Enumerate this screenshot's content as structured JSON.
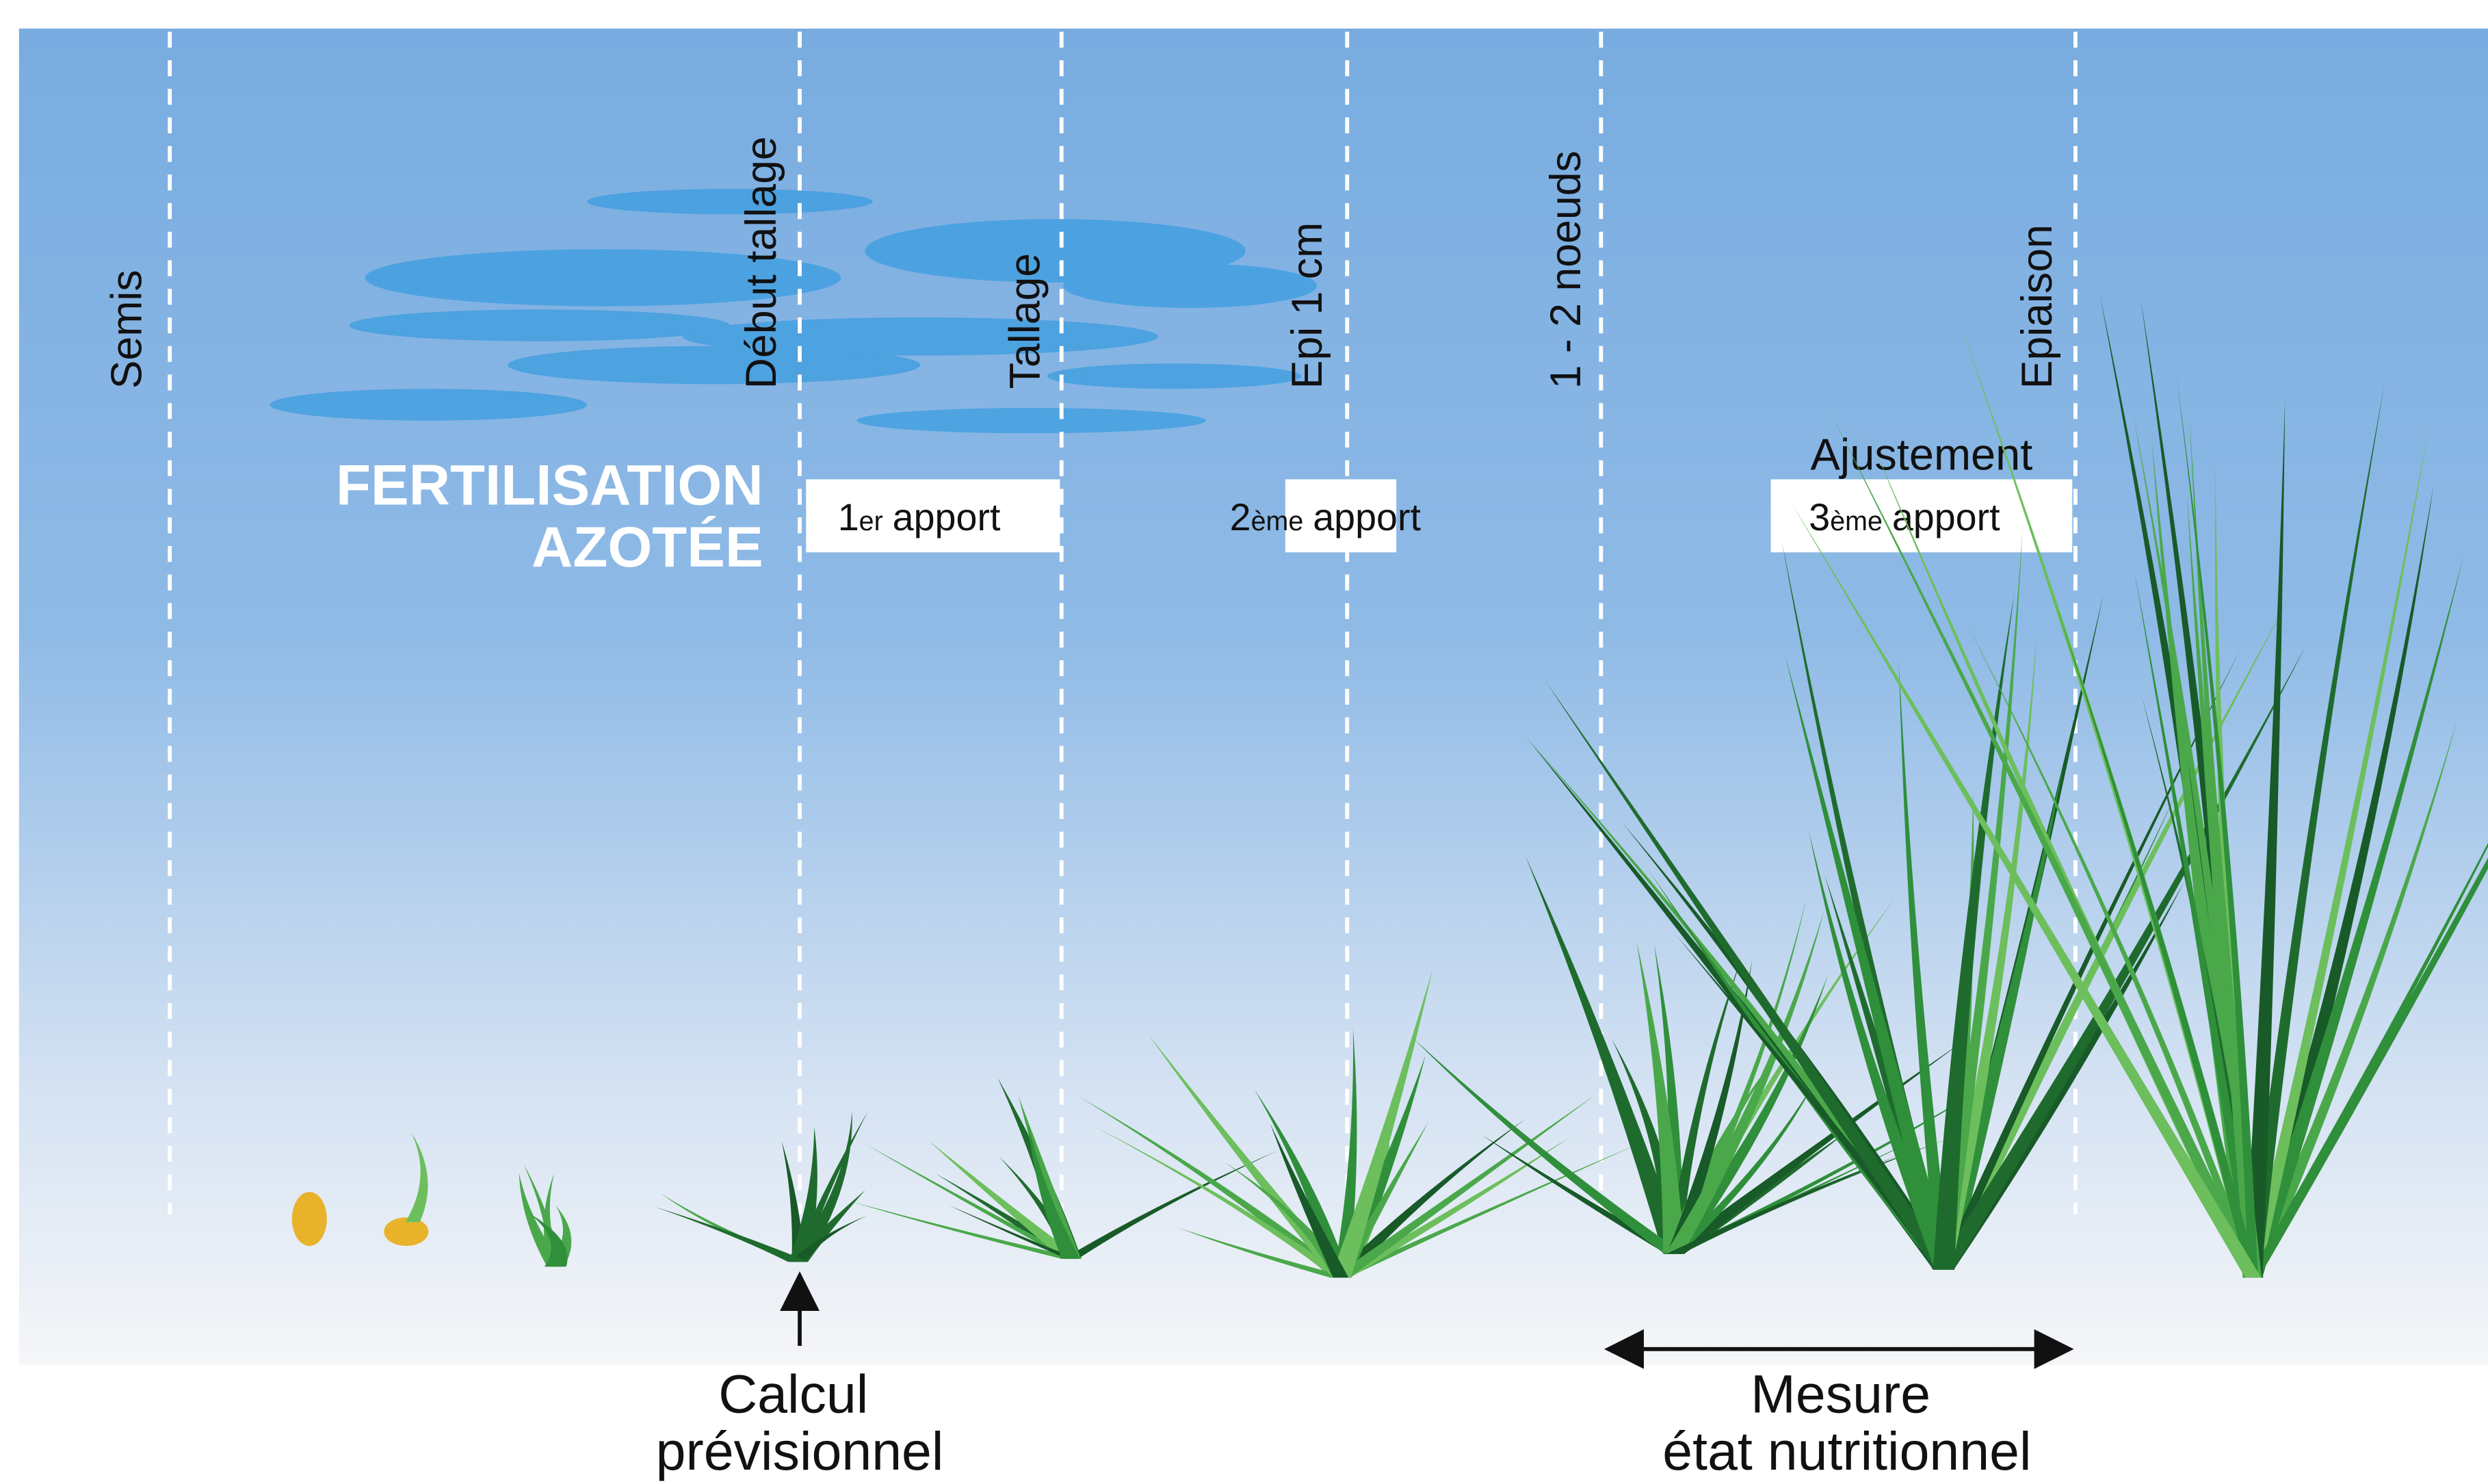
{
  "title": {
    "line1": "FERTILISATION",
    "line2": "AZOTÉE"
  },
  "stages": [
    "Semis",
    "Début tallage",
    "Tallage",
    "Epi 1 cm",
    "1 - 2 noeuds",
    "Epiaison"
  ],
  "apports": [
    {
      "number": "1",
      "suffix": "er",
      "label": "apport"
    },
    {
      "number": "2",
      "suffix": "ème",
      "label": "apport"
    },
    {
      "number": "3",
      "suffix": "ème",
      "label": "apport",
      "heading": "Ajustement"
    }
  ],
  "calcul": {
    "line1": "Calcul",
    "line2": "prévisionnel"
  },
  "mesure": {
    "line1": "Mesure",
    "line2": "état nutritionnel"
  }
}
